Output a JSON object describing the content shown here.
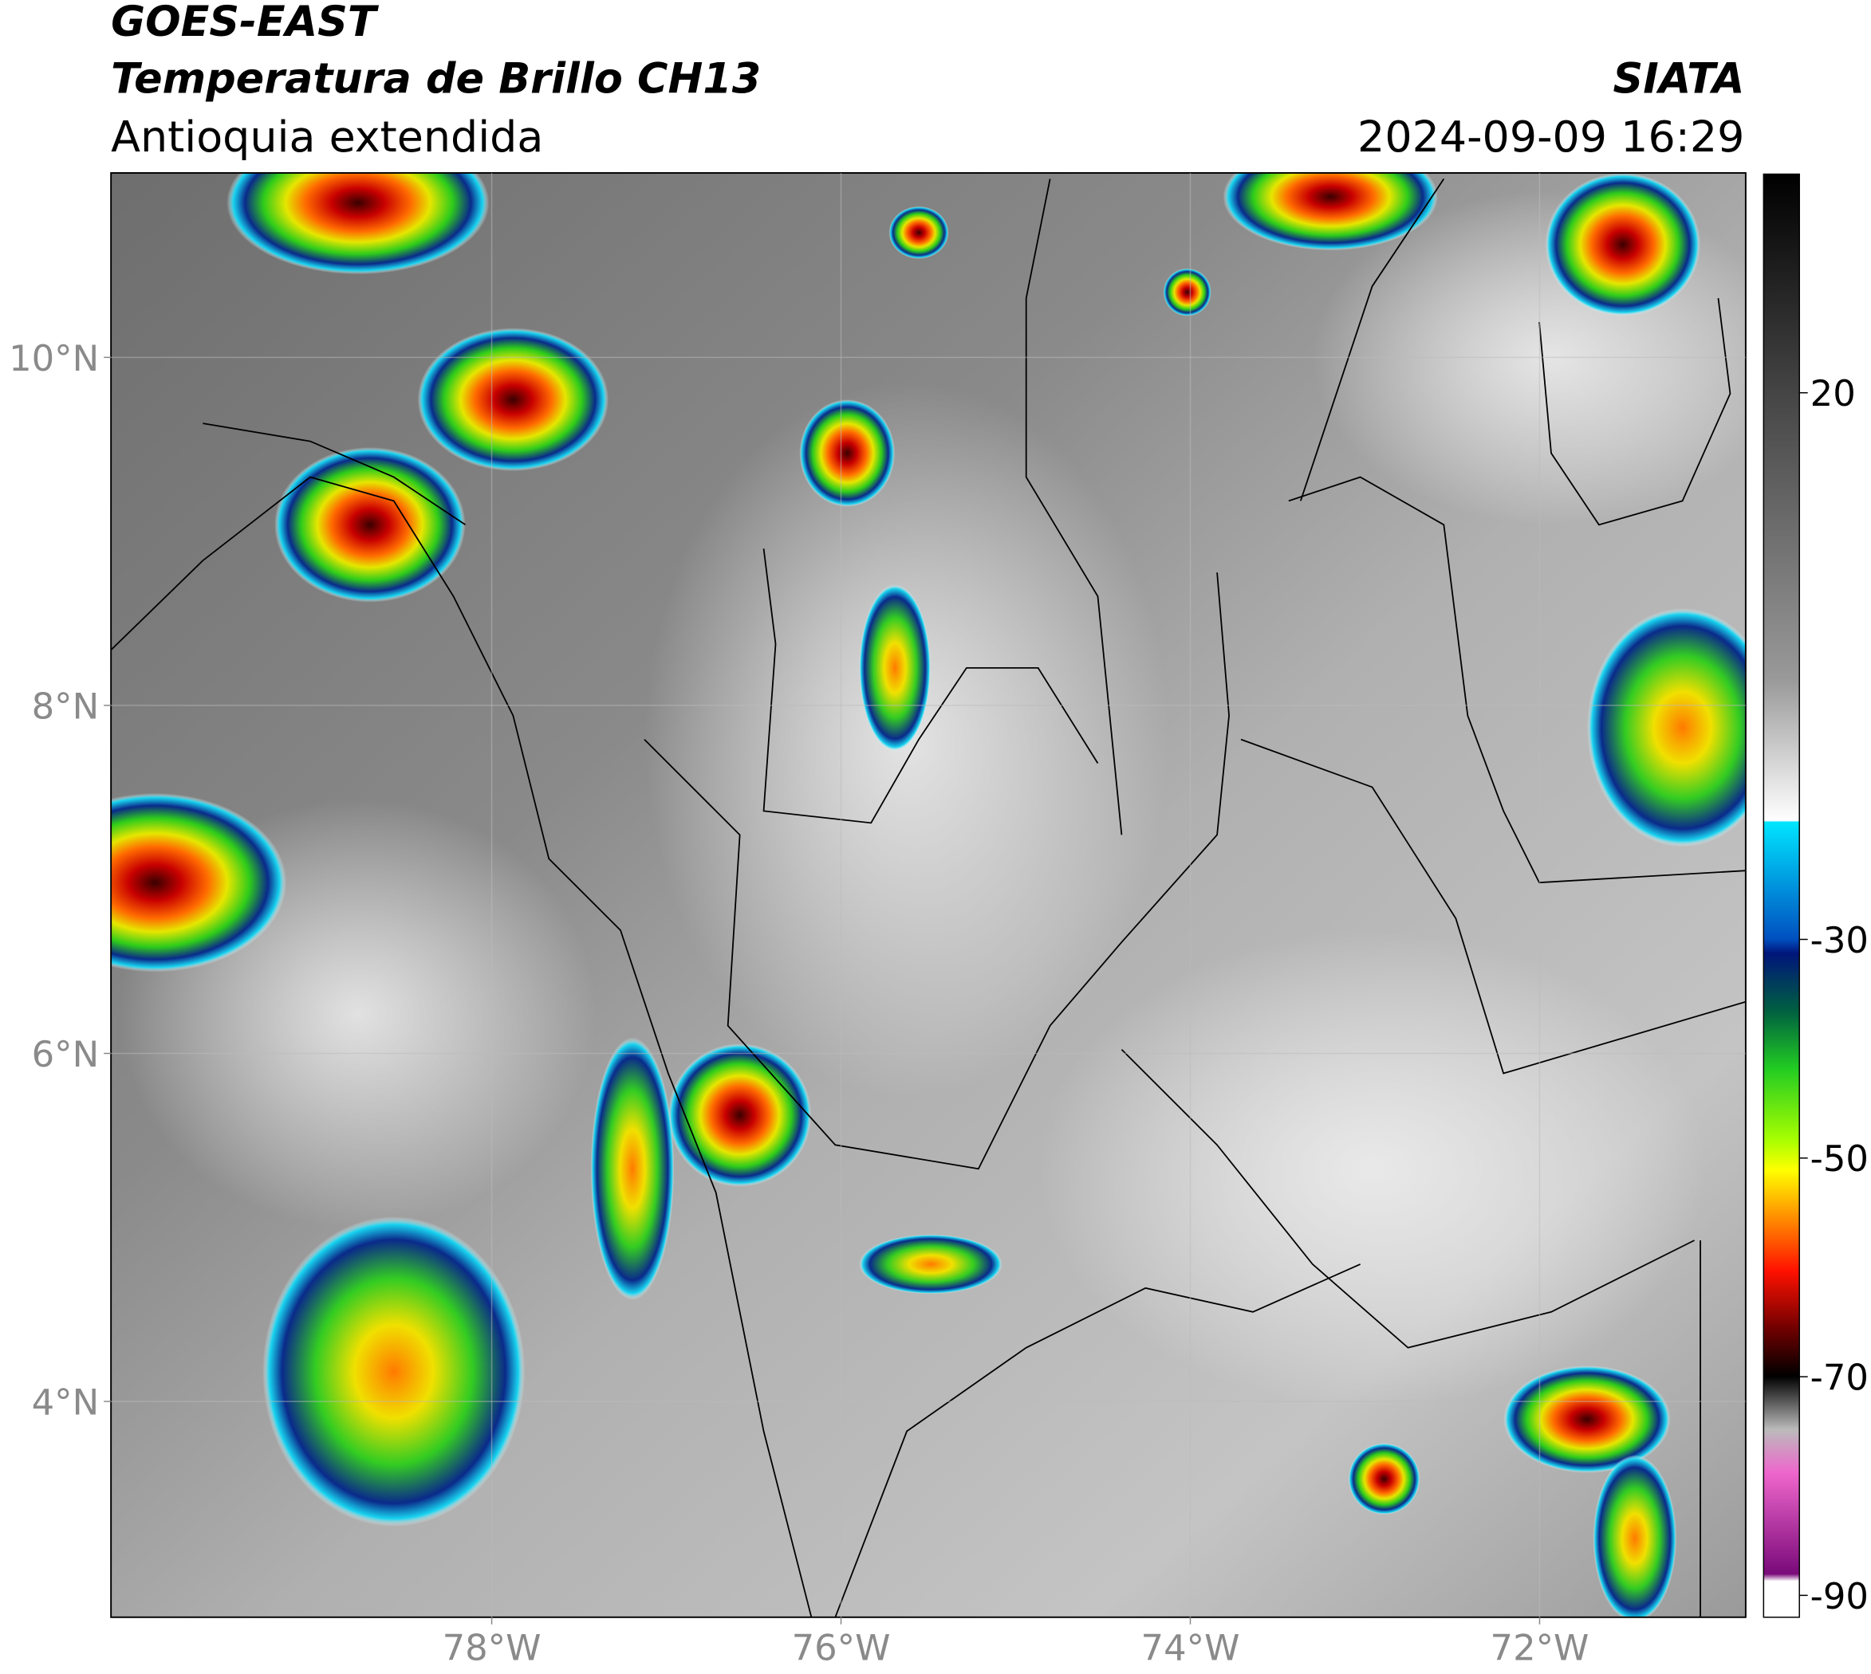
{
  "chart_data": {
    "type": "map",
    "title": "GOES-EAST",
    "subtitle": "Temperatura de Brillo CH13",
    "region": "Antioquia extendida",
    "source": "SIATA",
    "datetime": "2024-09-09 16:29",
    "xlim": [
      -80.18,
      -70.82
    ],
    "ylim": [
      2.76,
      11.06
    ],
    "xticks": [
      {
        "value": -78,
        "label": "78°W"
      },
      {
        "value": -76,
        "label": "76°W"
      },
      {
        "value": -74,
        "label": "74°W"
      },
      {
        "value": -72,
        "label": "72°W"
      }
    ],
    "yticks": [
      {
        "value": 4,
        "label": "4°N"
      },
      {
        "value": 6,
        "label": "6°N"
      },
      {
        "value": 8,
        "label": "8°N"
      },
      {
        "value": 10,
        "label": "10°N"
      }
    ],
    "grid": true,
    "colorbar": {
      "lim": [
        -92,
        40
      ],
      "ticks": [
        20,
        -30,
        -50,
        -70,
        -90
      ]
    }
  }
}
